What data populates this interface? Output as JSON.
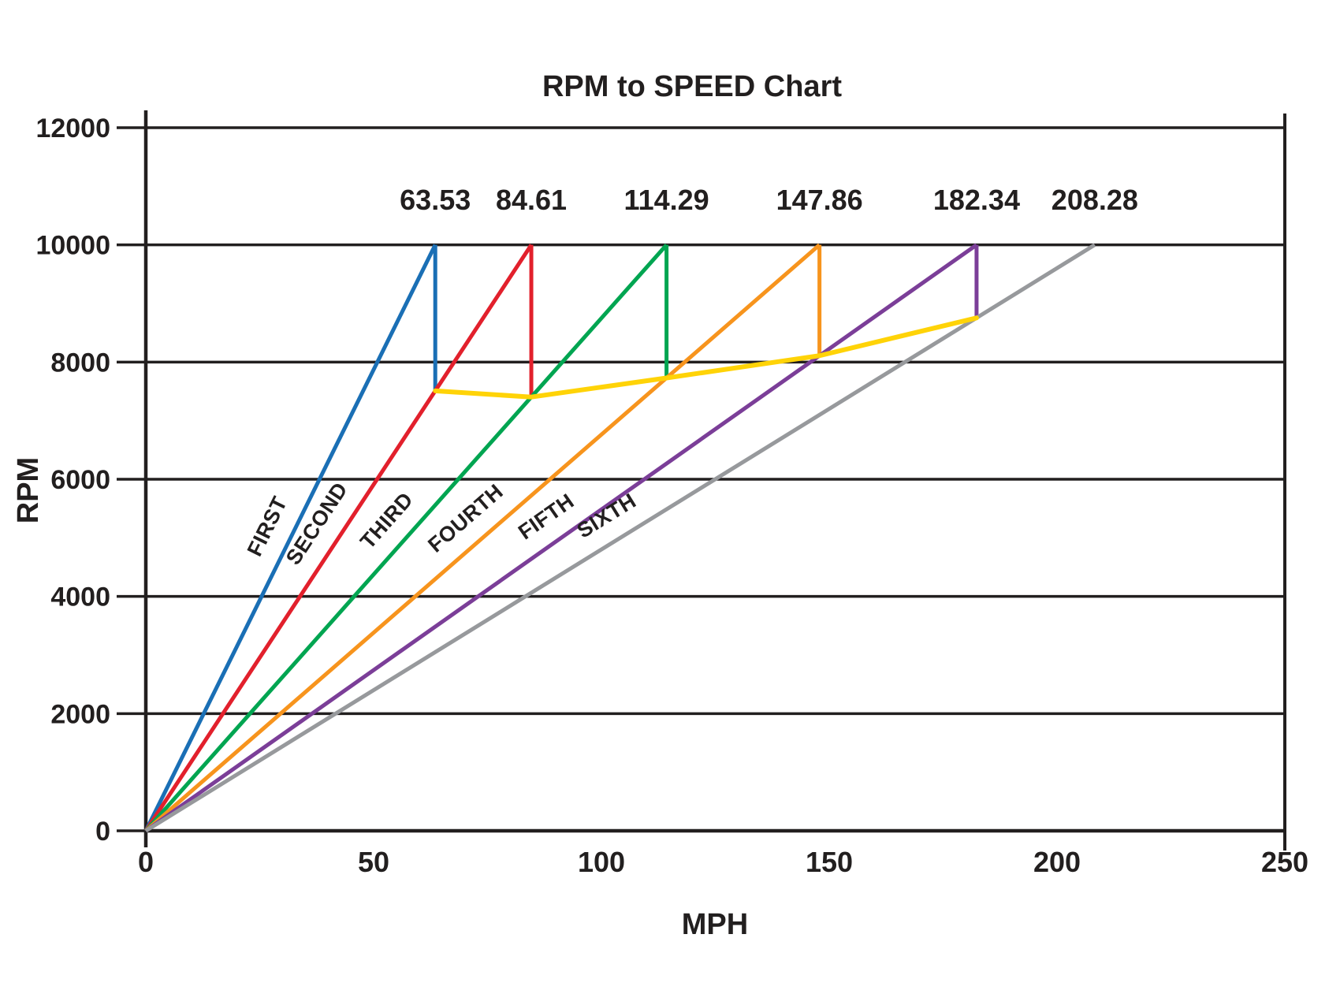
{
  "chart_data": {
    "type": "line",
    "title": "RPM to SPEED Chart",
    "xlabel": "MPH",
    "ylabel": "RPM",
    "xlim": [
      0,
      250
    ],
    "ylim": [
      0,
      12000
    ],
    "x_ticks": [
      0,
      50,
      100,
      150,
      200,
      250
    ],
    "y_ticks": [
      0,
      2000,
      4000,
      6000,
      8000,
      10000,
      12000
    ],
    "grid": "horizontal-only",
    "legend_position": "labels-on-lines",
    "peak_rpm": 10000,
    "text_color": "#221f1f",
    "background_color": "#ffffff",
    "gears": [
      {
        "name": "FIRST",
        "color": "#1a6fb5",
        "max_mph": 63.53,
        "peak_label": "63.53",
        "drop_to_rpm": 7509
      },
      {
        "name": "SECOND",
        "color": "#e2202c",
        "max_mph": 84.61,
        "peak_label": "84.61",
        "drop_to_rpm": 7403
      },
      {
        "name": "THIRD",
        "color": "#00a551",
        "max_mph": 114.29,
        "peak_label": "114.29",
        "drop_to_rpm": 7729
      },
      {
        "name": "FOURTH",
        "color": "#f7941d",
        "max_mph": 147.86,
        "peak_label": "147.86",
        "drop_to_rpm": 8109
      },
      {
        "name": "FIFTH",
        "color": "#7b3e98",
        "max_mph": 182.34,
        "peak_label": "182.34",
        "drop_to_rpm": 8754
      },
      {
        "name": "SIXTH",
        "color": "#97999c",
        "max_mph": 208.28,
        "peak_label": "208.28",
        "drop_to_rpm": null
      }
    ],
    "shift_line": {
      "name": "shift-rpm-curve",
      "color": "#ffd307",
      "points": [
        [
          63.53,
          7509
        ],
        [
          84.61,
          7403
        ],
        [
          114.29,
          7729
        ],
        [
          147.86,
          8109
        ],
        [
          182.34,
          8754
        ]
      ]
    }
  }
}
